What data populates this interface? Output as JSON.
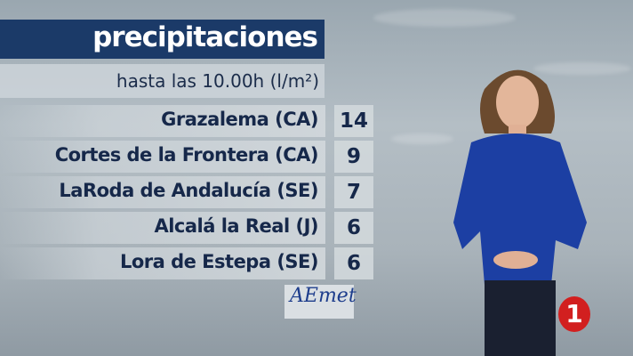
{
  "header": {
    "title": "precipitaciones",
    "subtitle": "hasta las 10.00h (l/m²)"
  },
  "rows": [
    {
      "location": "Grazalema (CA)",
      "value": "14"
    },
    {
      "location": "Cortes de la Frontera (CA)",
      "value": "9"
    },
    {
      "location": "LaRoda de Andalucía (SE)",
      "value": "7"
    },
    {
      "location": "Alcalá la Real (J)",
      "value": "6"
    },
    {
      "location": "Lora de Estepa (SE)",
      "value": "6"
    }
  ],
  "logos": {
    "aemet": "AEmet",
    "channel": "1"
  },
  "colors": {
    "title_bar": "#1b3a68",
    "text": "#16284a",
    "channel_logo": "#d21f1f"
  }
}
